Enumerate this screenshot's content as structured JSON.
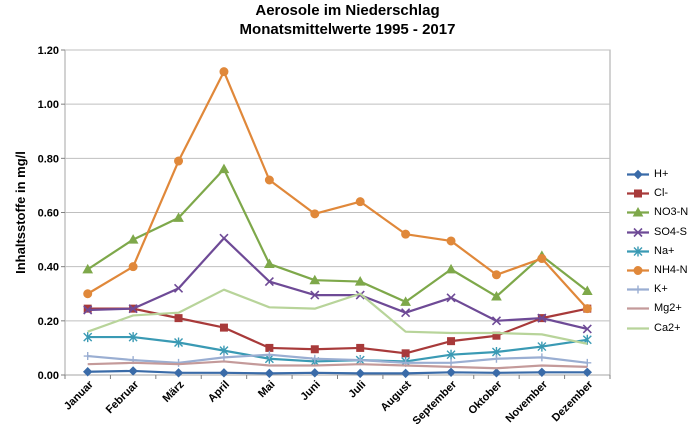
{
  "chart_data": {
    "type": "line",
    "title": "Aerosole im Niederschlag",
    "subtitle": "Monatsmittelwerte  1995 - 2017",
    "ylabel": "Inhaltsstoffe in mg/l",
    "xlabel": "",
    "ylim": [
      0,
      1.2
    ],
    "yticks": [
      "0.00",
      "0.20",
      "0.40",
      "0.60",
      "0.80",
      "1.00",
      "1.20"
    ],
    "grid": "horizontal",
    "legend_position": "right",
    "categories": [
      "Januar",
      "Februar",
      "März",
      "April",
      "Mai",
      "Juni",
      "Juli",
      "August",
      "September",
      "Oktober",
      "November",
      "Dezember"
    ],
    "series": [
      {
        "name": "H+",
        "color": "#3a6ba8",
        "marker": "diamond",
        "values": [
          0.012,
          0.015,
          0.008,
          0.008,
          0.006,
          0.008,
          0.006,
          0.006,
          0.01,
          0.008,
          0.01,
          0.01
        ]
      },
      {
        "name": "Cl-",
        "color": "#a83a3a",
        "marker": "square",
        "values": [
          0.245,
          0.245,
          0.21,
          0.175,
          0.1,
          0.095,
          0.1,
          0.08,
          0.125,
          0.145,
          0.21,
          0.245
        ]
      },
      {
        "name": "NO3-N",
        "color": "#7ea84a",
        "marker": "triangle",
        "values": [
          0.39,
          0.5,
          0.58,
          0.76,
          0.41,
          0.35,
          0.345,
          0.27,
          0.39,
          0.29,
          0.44,
          0.31
        ]
      },
      {
        "name": "SO4-S",
        "color": "#6e4a96",
        "marker": "x",
        "values": [
          0.24,
          0.245,
          0.32,
          0.505,
          0.345,
          0.295,
          0.295,
          0.23,
          0.285,
          0.2,
          0.21,
          0.17
        ]
      },
      {
        "name": "Na+",
        "color": "#3a9ab4",
        "marker": "star",
        "values": [
          0.14,
          0.14,
          0.12,
          0.09,
          0.06,
          0.05,
          0.055,
          0.05,
          0.075,
          0.085,
          0.105,
          0.13
        ]
      },
      {
        "name": "NH4-N",
        "color": "#e0883a",
        "marker": "circle",
        "values": [
          0.3,
          0.4,
          0.79,
          1.12,
          0.72,
          0.595,
          0.64,
          0.52,
          0.495,
          0.37,
          0.43,
          0.245
        ]
      },
      {
        "name": "K+",
        "color": "#9aaed2",
        "marker": "plus",
        "values": [
          0.07,
          0.055,
          0.045,
          0.065,
          0.075,
          0.06,
          0.055,
          0.045,
          0.045,
          0.06,
          0.065,
          0.045
        ]
      },
      {
        "name": "Mg2+",
        "color": "#c49a9a",
        "marker": "none",
        "values": [
          0.04,
          0.045,
          0.04,
          0.05,
          0.035,
          0.035,
          0.04,
          0.035,
          0.03,
          0.025,
          0.035,
          0.03
        ]
      },
      {
        "name": "Ca2+",
        "color": "#b8d49a",
        "marker": "none",
        "values": [
          0.16,
          0.22,
          0.23,
          0.315,
          0.25,
          0.245,
          0.3,
          0.16,
          0.155,
          0.155,
          0.15,
          0.115
        ]
      }
    ]
  }
}
